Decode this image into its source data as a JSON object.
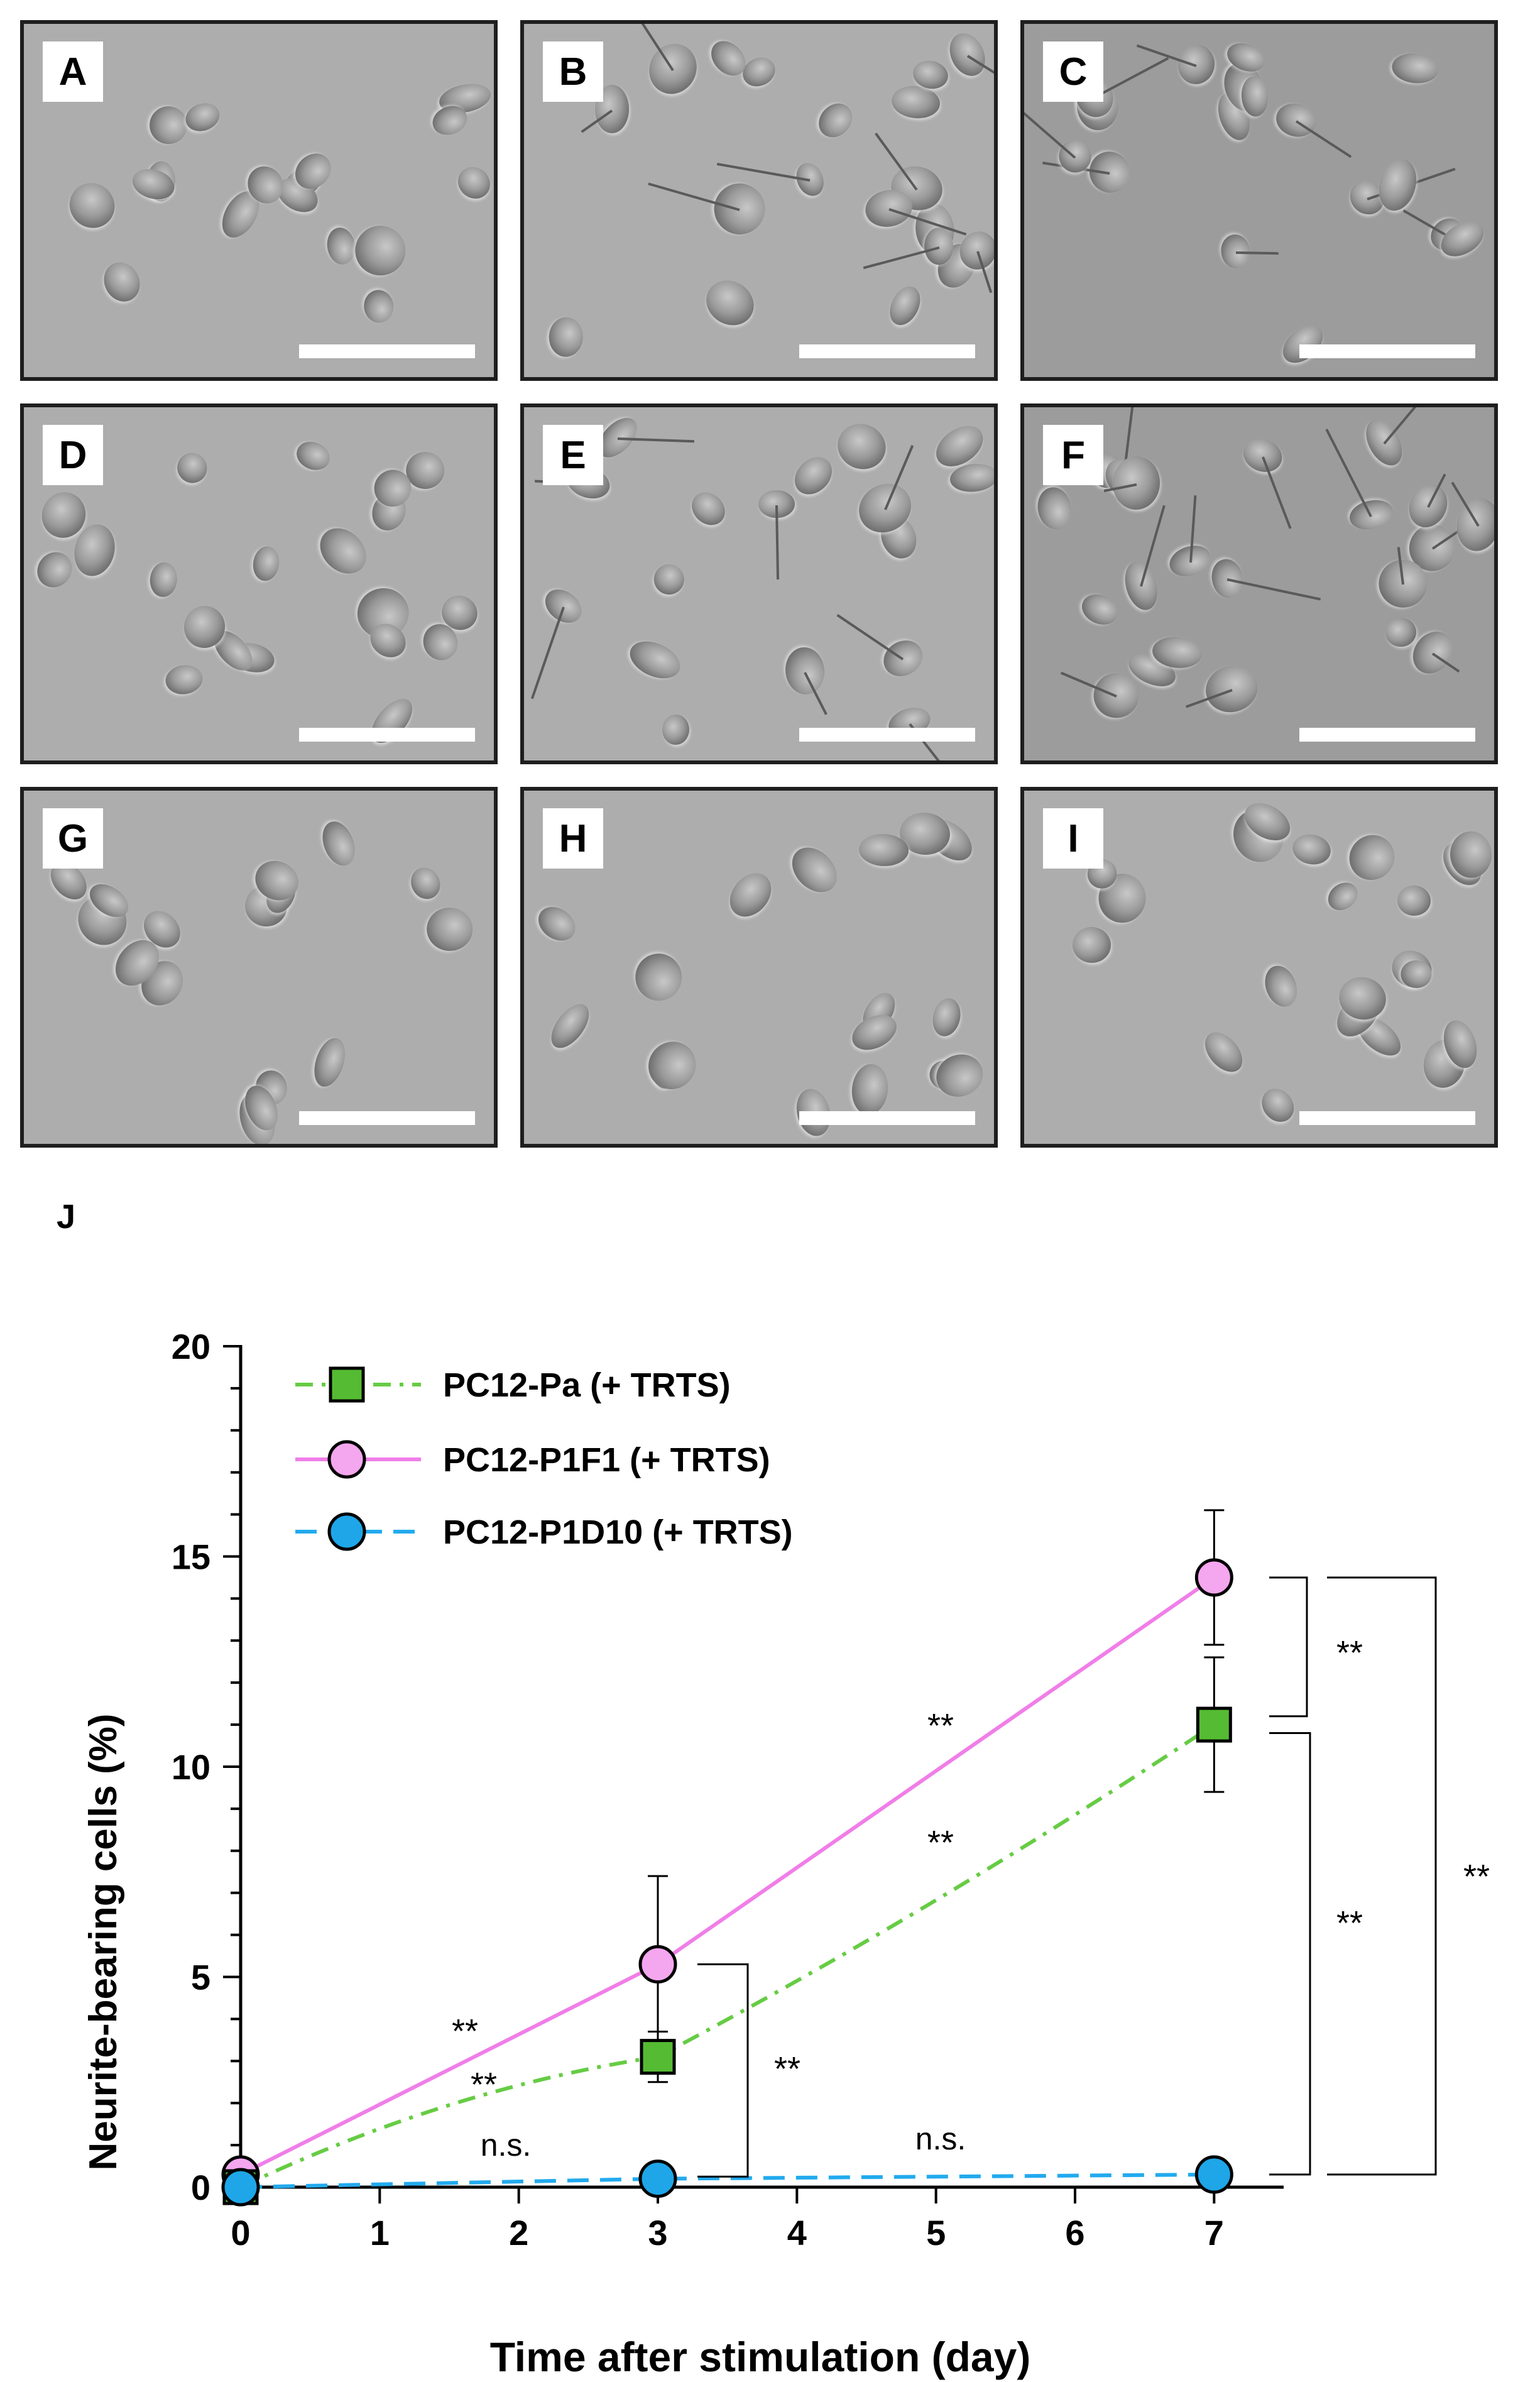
{
  "micrographs": [
    {
      "label": "A"
    },
    {
      "label": "B"
    },
    {
      "label": "C"
    },
    {
      "label": "D"
    },
    {
      "label": "E"
    },
    {
      "label": "F"
    },
    {
      "label": "G"
    },
    {
      "label": "H"
    },
    {
      "label": "I"
    }
  ],
  "chart_panel_label": "J",
  "colors": {
    "pa": "#66cc44",
    "p1f1": "#f07ee8",
    "p1d10": "#22aaee",
    "pa_fill": "#55bb33",
    "p1f1_fill": "#f4a6ee",
    "p1d10_fill": "#1ea6e8"
  },
  "chart_data": {
    "type": "line",
    "xlabel": "Time after stimulation (day)",
    "ylabel": "Neurite-bearing cells (%)",
    "xlim": [
      0,
      7.5
    ],
    "ylim": [
      0,
      20
    ],
    "xticks": [
      "0",
      "1",
      "2",
      "3",
      "4",
      "5",
      "6",
      "7"
    ],
    "yticks": [
      "0",
      "5",
      "10",
      "15",
      "20"
    ],
    "legend_position": "top-left",
    "series": [
      {
        "name": "PC12-Pa (+ TRTS)",
        "marker": "square",
        "line": "dash-dot",
        "x": [
          0,
          3,
          7
        ],
        "y": [
          0.0,
          3.1,
          11.0
        ],
        "err": [
          0.1,
          0.6,
          1.6
        ]
      },
      {
        "name": "PC12-P1F1 (+ TRTS)",
        "marker": "circle",
        "line": "solid",
        "x": [
          0,
          3,
          7
        ],
        "y": [
          0.3,
          5.3,
          14.5
        ],
        "err": [
          0.3,
          2.1,
          1.6
        ]
      },
      {
        "name": "PC12-P1D10 (+ TRTS)",
        "marker": "circle",
        "line": "dashed",
        "x": [
          0,
          3,
          7
        ],
        "y": [
          0.0,
          0.2,
          0.3
        ],
        "err": [
          0.05,
          0.1,
          0.2
        ]
      }
    ],
    "annotations": {
      "sig_p1f1_0_3": "**",
      "sig_pa_0_3": "**",
      "sig_p1d10_0_3": "n.s.",
      "sig_p1f1_3_7": "**",
      "sig_pa_3_7": "**",
      "sig_p1d10_3_7": "n.s.",
      "bracket_day3": "**",
      "bracket_day7_p1f1_pa": "**",
      "bracket_day7_pa_p1d10": "**",
      "bracket_day7_p1f1_p1d10": "**"
    }
  }
}
